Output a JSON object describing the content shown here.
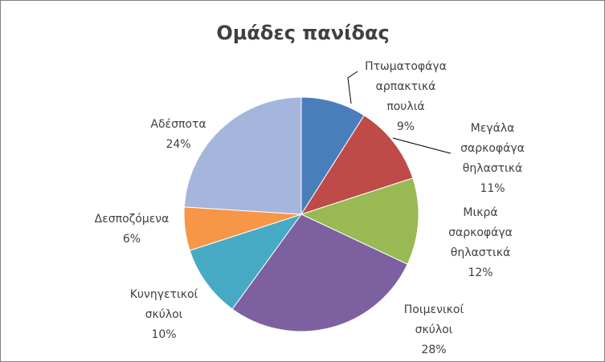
{
  "chart_data": {
    "type": "pie",
    "title": "Ομάδες πανίδας",
    "slices": [
      {
        "label": [
          "Πτωματοφάγα",
          "αρπακτικά",
          "πουλιά"
        ],
        "percent_label": "9%",
        "value": 9,
        "color": "#4a7ebb"
      },
      {
        "label": [
          "Μεγάλα",
          "σαρκοφάγα",
          "θηλαστικά"
        ],
        "percent_label": "11%",
        "value": 11,
        "color": "#be4b48"
      },
      {
        "label": [
          "Μικρά",
          "σαρκοφάγα",
          "θηλαστικά"
        ],
        "percent_label": "12%",
        "value": 12,
        "color": "#98b954"
      },
      {
        "label": [
          "Ποιμενικοί",
          "σκύλοι"
        ],
        "percent_label": "28%",
        "value": 28,
        "color": "#7d60a0"
      },
      {
        "label": [
          "Κυνηγετικοί",
          "σκύλοι"
        ],
        "percent_label": "10%",
        "value": 10,
        "color": "#46aac5"
      },
      {
        "label": [
          "Δεσποζόμενα"
        ],
        "percent_label": "6%",
        "value": 6,
        "color": "#f79646"
      },
      {
        "label": [
          "Αδέσποτα"
        ],
        "percent_label": "24%",
        "value": 24,
        "color": "#a5b6dc"
      }
    ]
  }
}
